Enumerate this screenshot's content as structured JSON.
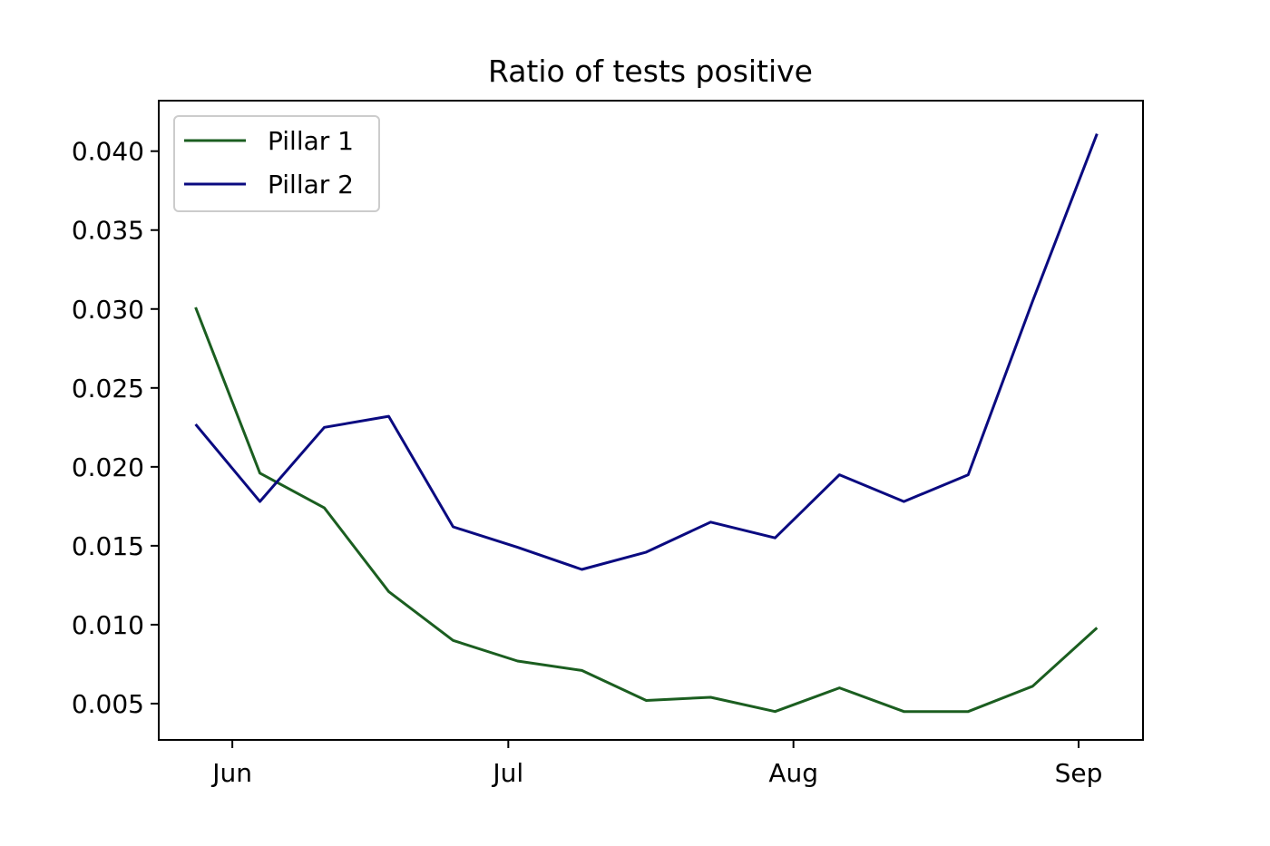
{
  "chart_data": {
    "type": "line",
    "title": "Ratio of tests positive",
    "xlabel": "",
    "ylabel": "",
    "x_axis_type": "date",
    "xlim": [
      "2020-05-24",
      "2020-09-08"
    ],
    "ylim": [
      0.0027,
      0.0432
    ],
    "x_ticks": [
      {
        "date": "2020-06-01",
        "label": "Jun"
      },
      {
        "date": "2020-07-01",
        "label": "Jul"
      },
      {
        "date": "2020-08-01",
        "label": "Aug"
      },
      {
        "date": "2020-09-01",
        "label": "Sep"
      }
    ],
    "y_ticks": [
      0.005,
      0.01,
      0.015,
      0.02,
      0.025,
      0.03,
      0.035,
      0.04
    ],
    "y_tick_labels": [
      "0.005",
      "0.010",
      "0.015",
      "0.020",
      "0.025",
      "0.030",
      "0.035",
      "0.040"
    ],
    "grid": false,
    "legend_position": "top-left",
    "x": [
      "2020-05-28",
      "2020-06-04",
      "2020-06-11",
      "2020-06-18",
      "2020-06-25",
      "2020-07-02",
      "2020-07-09",
      "2020-07-16",
      "2020-07-23",
      "2020-07-30",
      "2020-08-06",
      "2020-08-13",
      "2020-08-20",
      "2020-08-27",
      "2020-09-03"
    ],
    "series": [
      {
        "name": "Pillar 1",
        "color": "#1b5e20",
        "values": [
          0.0301,
          0.0196,
          0.0174,
          0.0121,
          0.009,
          0.0077,
          0.0071,
          0.0052,
          0.0054,
          0.0045,
          0.006,
          0.0045,
          0.0045,
          0.0061,
          0.0098
        ]
      },
      {
        "name": "Pillar 2",
        "color": "#0a0a80",
        "values": [
          0.0227,
          0.0178,
          0.0225,
          0.0232,
          0.0162,
          0.0149,
          0.0135,
          0.0146,
          0.0165,
          0.0155,
          0.0195,
          0.0178,
          0.0195,
          0.0305,
          0.0411
        ]
      }
    ]
  }
}
